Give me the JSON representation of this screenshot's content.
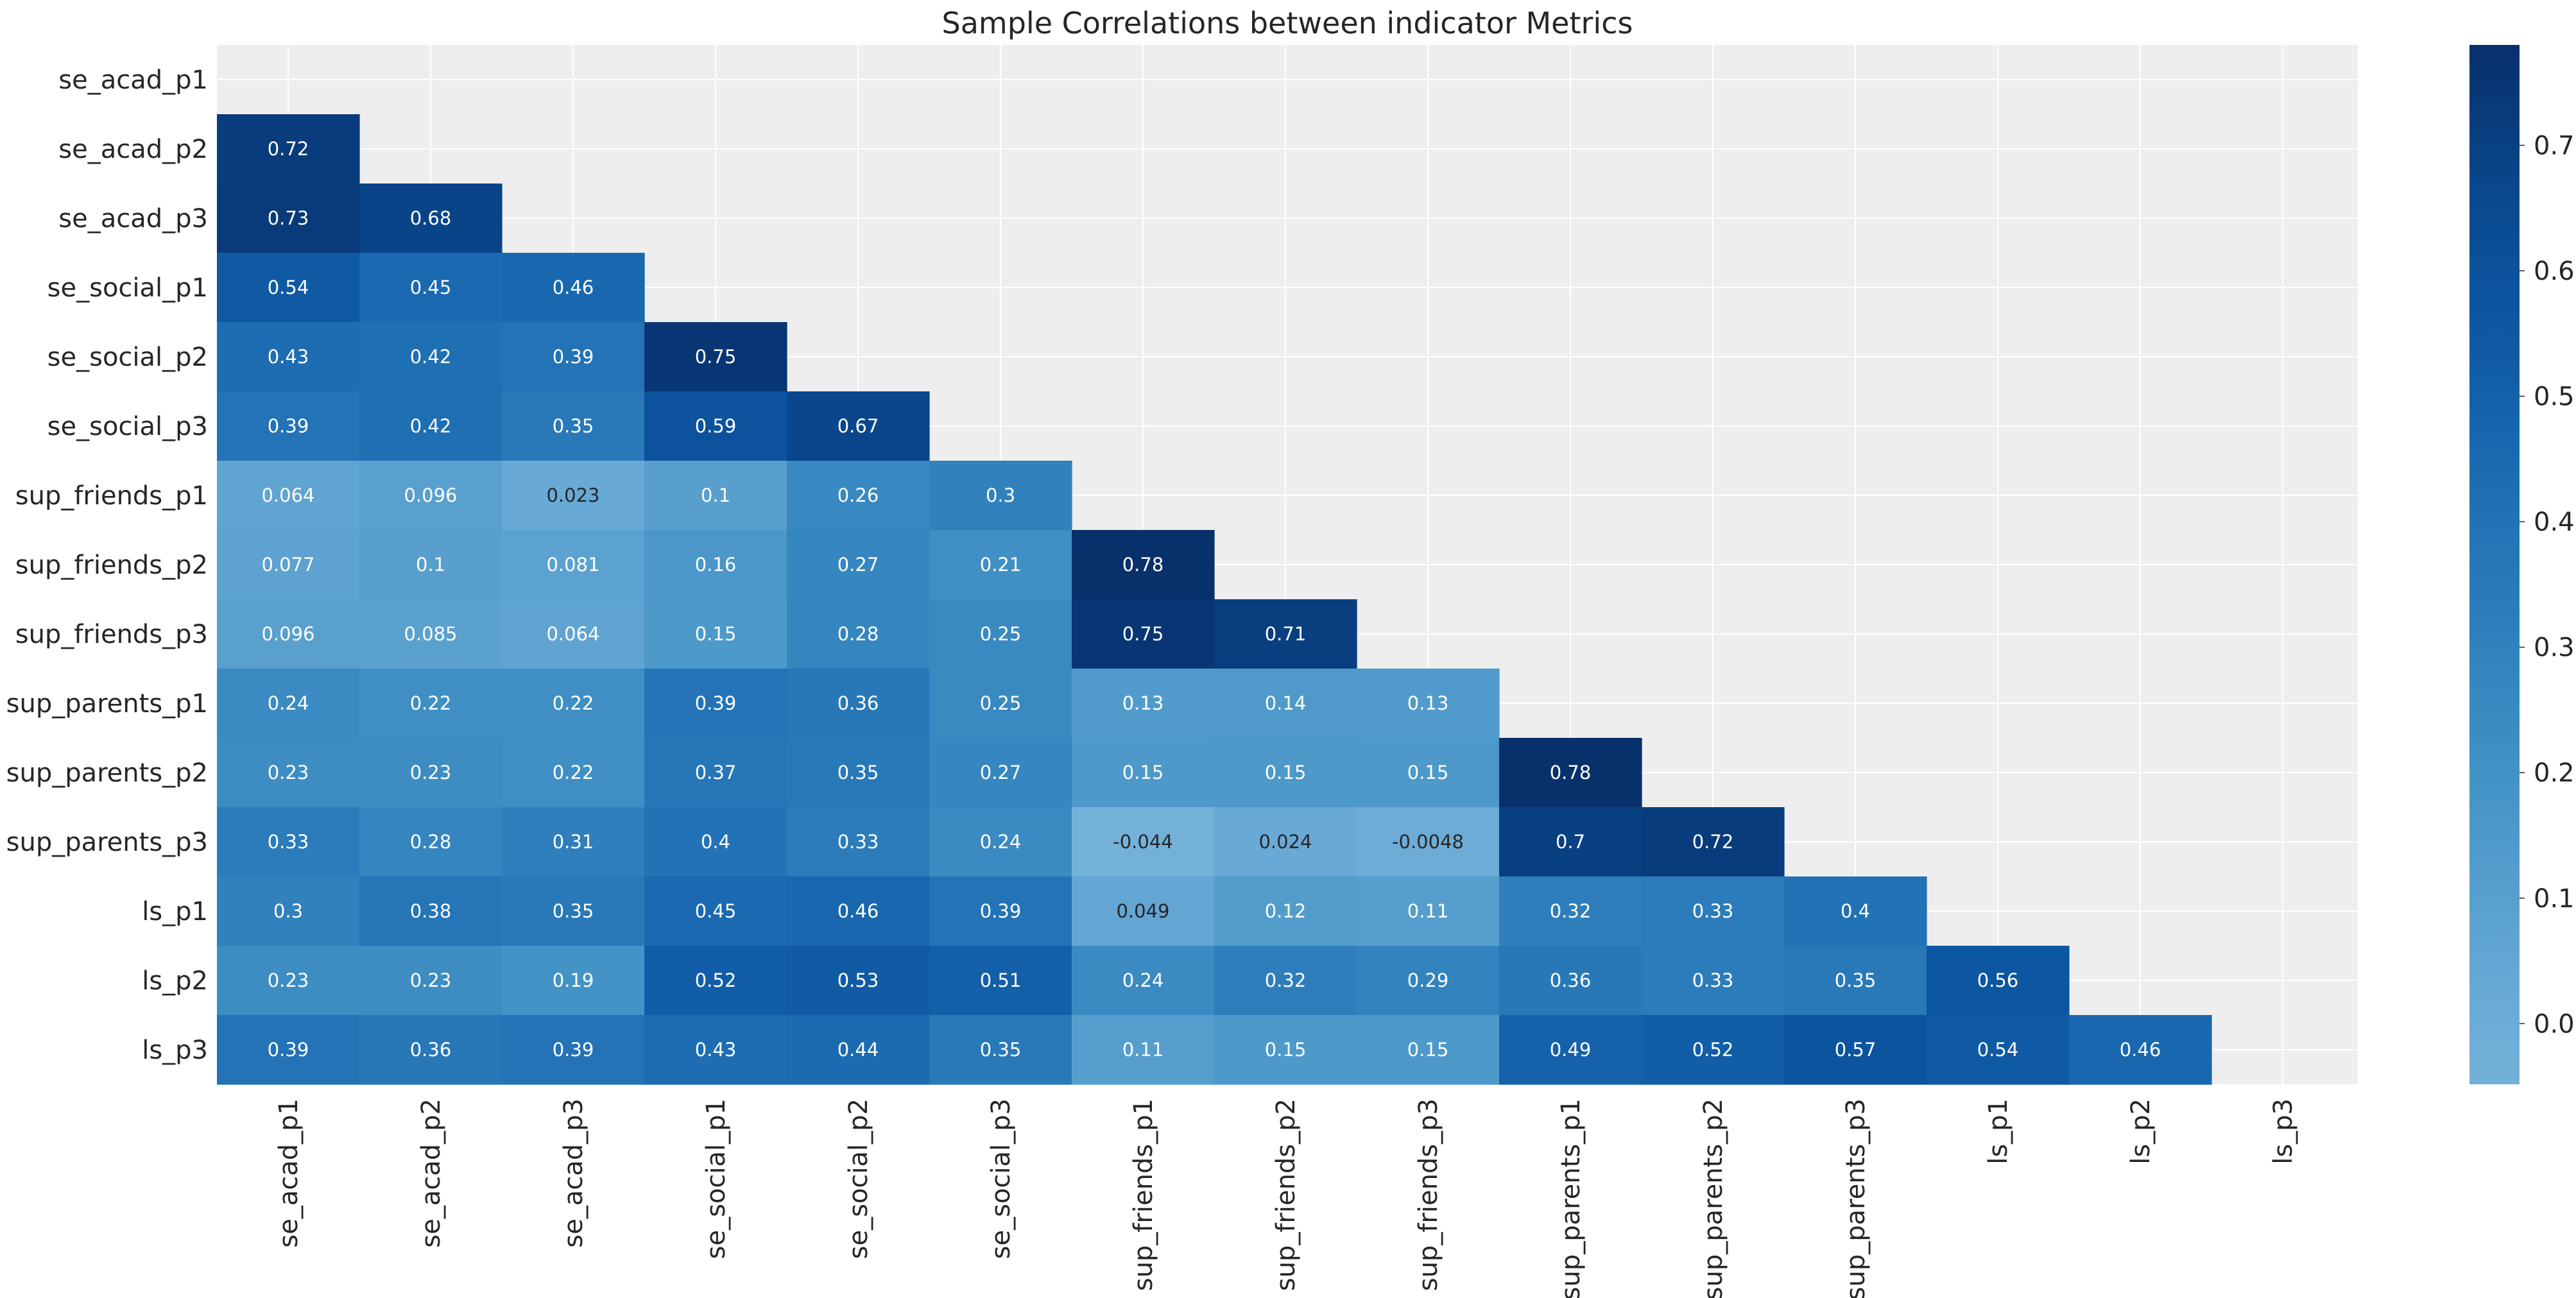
{
  "chart_data": {
    "type": "heatmap",
    "title": "Sample Correlations between indicator Metrics",
    "labels": [
      "se_acad_p1",
      "se_acad_p2",
      "se_acad_p3",
      "se_social_p1",
      "se_social_p2",
      "se_social_p3",
      "sup_friends_p1",
      "sup_friends_p2",
      "sup_friends_p3",
      "sup_parents_p1",
      "sup_parents_p2",
      "sup_parents_p3",
      "ls_p1",
      "ls_p2",
      "ls_p3"
    ],
    "mask": "upper triangle and diagonal hidden (lower triangle shown)",
    "rows": [
      [],
      [
        "0.72"
      ],
      [
        "0.73",
        "0.68"
      ],
      [
        "0.54",
        "0.45",
        "0.46"
      ],
      [
        "0.43",
        "0.42",
        "0.39",
        "0.75"
      ],
      [
        "0.39",
        "0.42",
        "0.35",
        "0.59",
        "0.67"
      ],
      [
        "0.064",
        "0.096",
        "0.023",
        "0.1",
        "0.26",
        "0.3"
      ],
      [
        "0.077",
        "0.1",
        "0.081",
        "0.16",
        "0.27",
        "0.21",
        "0.78"
      ],
      [
        "0.096",
        "0.085",
        "0.064",
        "0.15",
        "0.28",
        "0.25",
        "0.75",
        "0.71"
      ],
      [
        "0.24",
        "0.22",
        "0.22",
        "0.39",
        "0.36",
        "0.25",
        "0.13",
        "0.14",
        "0.13"
      ],
      [
        "0.23",
        "0.23",
        "0.22",
        "0.37",
        "0.35",
        "0.27",
        "0.15",
        "0.15",
        "0.15",
        "0.78"
      ],
      [
        "0.33",
        "0.28",
        "0.31",
        "0.4",
        "0.33",
        "0.24",
        "-0.044",
        "0.024",
        "-0.0048",
        "0.7",
        "0.72"
      ],
      [
        "0.3",
        "0.38",
        "0.35",
        "0.45",
        "0.46",
        "0.39",
        "0.049",
        "0.12",
        "0.11",
        "0.32",
        "0.33",
        "0.4"
      ],
      [
        "0.23",
        "0.23",
        "0.19",
        "0.52",
        "0.53",
        "0.51",
        "0.24",
        "0.32",
        "0.29",
        "0.36",
        "0.33",
        "0.35",
        "0.56"
      ],
      [
        "0.39",
        "0.36",
        "0.39",
        "0.43",
        "0.44",
        "0.35",
        "0.11",
        "0.15",
        "0.15",
        "0.49",
        "0.52",
        "0.57",
        "0.54",
        "0.46"
      ]
    ],
    "colorbar": {
      "vmin": -0.0484,
      "vmax": 0.78,
      "ticks": [
        "0.0",
        "0.1",
        "0.2",
        "0.3",
        "0.4",
        "0.5",
        "0.6",
        "0.7"
      ],
      "colormap": "Blues"
    },
    "grid": true,
    "background_color": "#eeeeee",
    "grid_color": "#ffffff"
  }
}
